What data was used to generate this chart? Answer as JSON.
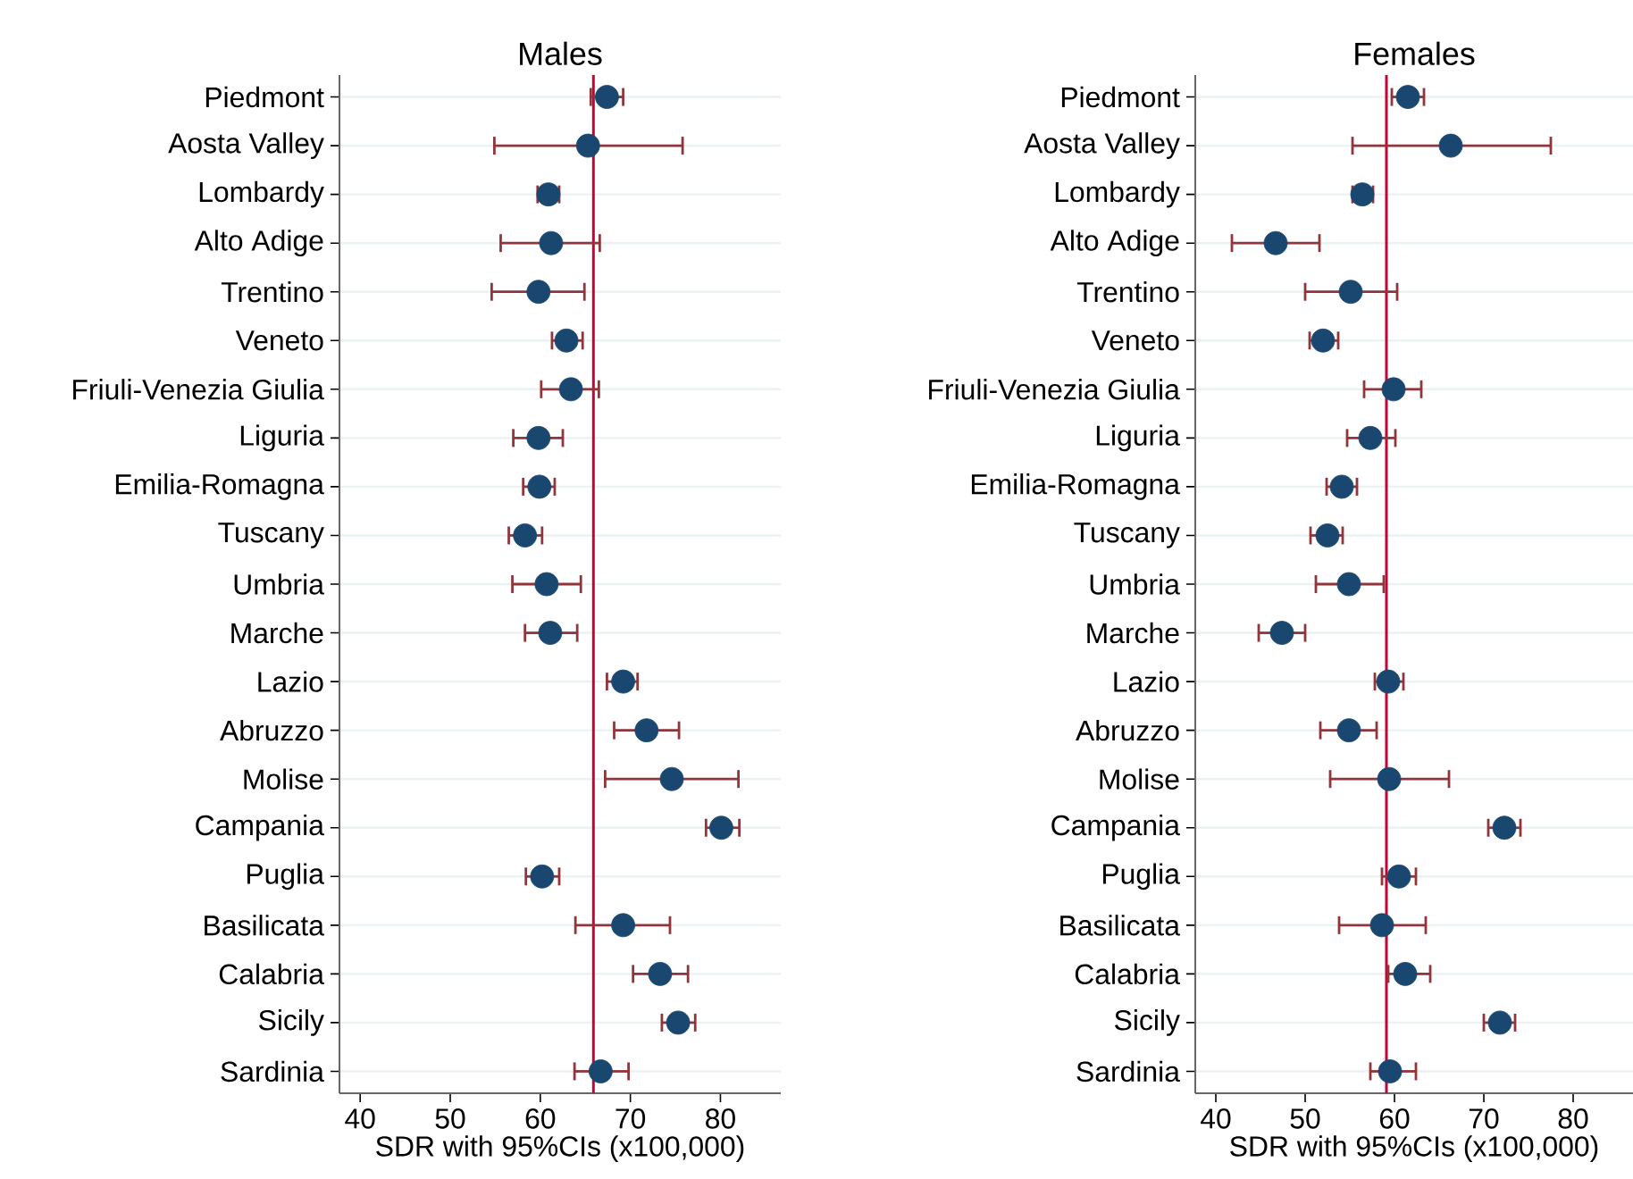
{
  "chart_data": [
    {
      "type": "scatter",
      "orientation": "horizontal",
      "title": "Males",
      "xlabel": "SDR with 95%CIs (x100,000)",
      "color": "#1a476f",
      "marker": "circle",
      "grid": "y",
      "xlim": [
        37.7,
        86.7
      ],
      "xticks": [
        40,
        50,
        60,
        70,
        80
      ],
      "categories": [
        "Piedmont",
        "Aosta Valley",
        "Lombardy",
        "Alto Adige",
        "Trentino",
        "Veneto",
        "Friuli-Venezia Giulia",
        "Liguria",
        "Emilia-Romagna",
        "Tuscany",
        "Umbria",
        "Marche",
        "Lazio",
        "Abruzzo",
        "Molise",
        "Campania",
        "Puglia",
        "Basilicata",
        "Calabria",
        "Sicily",
        "Sardinia"
      ],
      "values": [
        67.4,
        65.3,
        60.9,
        61.2,
        59.8,
        62.9,
        63.4,
        59.8,
        59.9,
        58.3,
        60.7,
        61.1,
        69.2,
        71.8,
        74.6,
        80.1,
        60.2,
        69.2,
        73.3,
        75.3,
        66.7
      ],
      "errors": [
        [
          65.6,
          69.2
        ],
        [
          54.9,
          75.8
        ],
        [
          59.7,
          62.1
        ],
        [
          55.6,
          66.6
        ],
        [
          54.6,
          64.9
        ],
        [
          61.3,
          64.7
        ],
        [
          60.1,
          66.5
        ],
        [
          57.0,
          62.5
        ],
        [
          58.1,
          61.6
        ],
        [
          56.5,
          60.2
        ],
        [
          56.9,
          64.5
        ],
        [
          58.3,
          64.1
        ],
        [
          67.4,
          70.8
        ],
        [
          68.2,
          75.4
        ],
        [
          67.2,
          82.0
        ],
        [
          78.4,
          82.1
        ],
        [
          58.4,
          62.1
        ],
        [
          63.9,
          74.4
        ],
        [
          70.3,
          76.4
        ],
        [
          73.5,
          77.2
        ],
        [
          63.8,
          69.8
        ]
      ],
      "ref_lines": [
        {
          "axis": "x",
          "value": 65.9,
          "color": "#c10534"
        }
      ]
    },
    {
      "type": "scatter",
      "orientation": "horizontal",
      "title": "Females",
      "xlabel": "SDR with 95%CIs (x100,000)",
      "color": "#1a476f",
      "marker": "circle",
      "grid": "y",
      "xlim": [
        37.7,
        86.7
      ],
      "xticks": [
        40,
        50,
        60,
        70,
        80
      ],
      "categories": [
        "Piedmont",
        "Aosta Valley",
        "Lombardy",
        "Alto Adige",
        "Trentino",
        "Veneto",
        "Friuli-Venezia Giulia",
        "Liguria",
        "Emilia-Romagna",
        "Tuscany",
        "Umbria",
        "Marche",
        "Lazio",
        "Abruzzo",
        "Molise",
        "Campania",
        "Puglia",
        "Basilicata",
        "Calabria",
        "Sicily",
        "Sardinia"
      ],
      "values": [
        61.5,
        66.3,
        56.4,
        46.7,
        55.1,
        52.0,
        59.9,
        57.3,
        54.1,
        52.5,
        54.9,
        47.4,
        59.3,
        54.9,
        59.4,
        72.3,
        60.5,
        58.6,
        61.2,
        71.8,
        59.5
      ],
      "errors": [
        [
          59.7,
          63.3
        ],
        [
          55.3,
          77.5
        ],
        [
          55.3,
          57.6
        ],
        [
          41.8,
          51.6
        ],
        [
          50.0,
          60.3
        ],
        [
          50.5,
          53.7
        ],
        [
          56.6,
          63.0
        ],
        [
          54.7,
          60.1
        ],
        [
          52.4,
          55.8
        ],
        [
          50.6,
          54.2
        ],
        [
          51.2,
          58.8
        ],
        [
          44.8,
          50.0
        ],
        [
          57.8,
          61.0
        ],
        [
          51.7,
          58.0
        ],
        [
          52.8,
          66.1
        ],
        [
          70.5,
          74.1
        ],
        [
          58.6,
          62.4
        ],
        [
          53.8,
          63.5
        ],
        [
          59.3,
          64.0
        ],
        [
          70.0,
          73.5
        ],
        [
          57.3,
          62.4
        ]
      ],
      "ref_lines": [
        {
          "axis": "x",
          "value": 59.1,
          "color": "#c10534"
        }
      ]
    }
  ]
}
